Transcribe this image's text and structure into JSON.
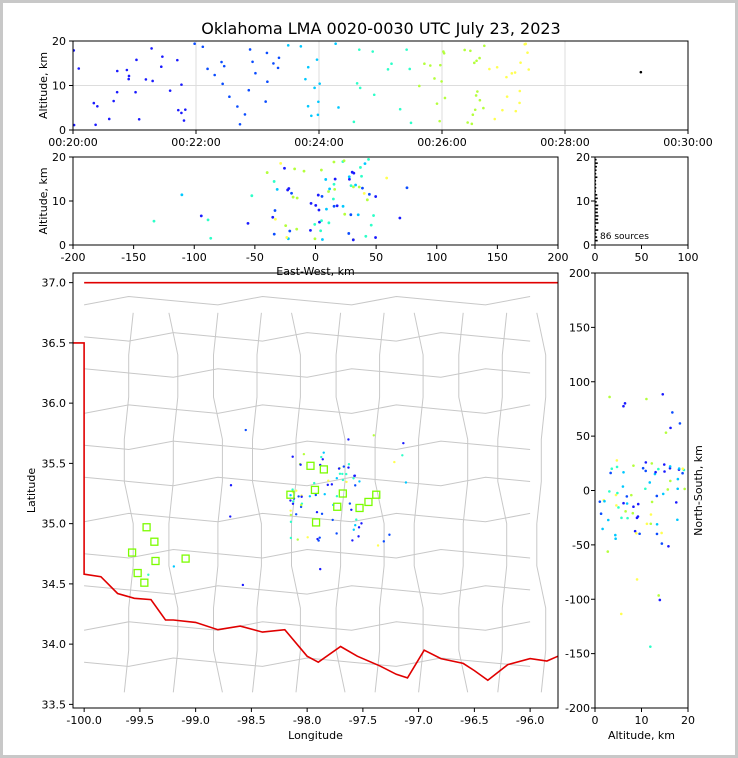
{
  "title": "Oklahoma LMA 0020-0030 UTC July 23, 2023",
  "chart_data": [
    {
      "panel": "altitude-time",
      "type": "scatter",
      "ylabel": "Altitude, km",
      "xlim": [
        "00:20:00",
        "00:30:00"
      ],
      "ylim": [
        0,
        20
      ],
      "xticks": [
        "00:20:00",
        "00:22:00",
        "00:24:00",
        "00:26:00",
        "00:28:00",
        "00:30:00"
      ],
      "yticks": [
        0,
        10,
        20
      ],
      "grid": true
    },
    {
      "panel": "east-west-altitude",
      "type": "scatter",
      "xlabel": "East-West, km",
      "ylabel": "Altitude, km",
      "xlim": [
        -200,
        200
      ],
      "ylim": [
        0,
        20
      ],
      "xticks": [
        -200,
        -150,
        -100,
        -50,
        0,
        50,
        100,
        150,
        200
      ],
      "yticks": [
        0,
        10,
        20
      ]
    },
    {
      "panel": "altitude-histogram",
      "type": "bar",
      "xlim": [
        0,
        100
      ],
      "ylim": [
        0,
        20
      ],
      "xticks": [
        0,
        50,
        100
      ],
      "yticks": [
        0,
        10,
        20
      ],
      "annotation": "86 sources"
    },
    {
      "panel": "plan-view-map",
      "type": "scatter",
      "xlabel": "Longitude",
      "ylabel": "Latitude",
      "xlim": [
        -100.1,
        -95.75
      ],
      "ylim": [
        33.47,
        37.08
      ],
      "xticks": [
        "-100.0",
        "-99.5",
        "-99.0",
        "-98.5",
        "-98.0",
        "-97.5",
        "-97.0",
        "-96.5",
        "-96.0"
      ],
      "yticks": [
        "33.5",
        "34.0",
        "34.5",
        "35.0",
        "35.5",
        "36.0",
        "36.5",
        "37.0"
      ],
      "station_color": "#7cfc00",
      "border_color": "#e00000",
      "county_color": "#c8c8c8",
      "stations": [
        {
          "lon": -97.85,
          "lat": 35.45
        },
        {
          "lon": -97.97,
          "lat": 35.48
        },
        {
          "lon": -98.15,
          "lat": 35.24
        },
        {
          "lon": -97.93,
          "lat": 35.28
        },
        {
          "lon": -97.68,
          "lat": 35.25
        },
        {
          "lon": -97.38,
          "lat": 35.24
        },
        {
          "lon": -97.45,
          "lat": 35.18
        },
        {
          "lon": -97.53,
          "lat": 35.13
        },
        {
          "lon": -97.73,
          "lat": 35.14
        },
        {
          "lon": -97.92,
          "lat": 35.01
        },
        {
          "lon": -99.44,
          "lat": 34.97
        },
        {
          "lon": -99.37,
          "lat": 34.85
        },
        {
          "lon": -99.57,
          "lat": 34.76
        },
        {
          "lon": -99.36,
          "lat": 34.69
        },
        {
          "lon": -99.09,
          "lat": 34.71
        },
        {
          "lon": -99.52,
          "lat": 34.59
        },
        {
          "lon": -99.46,
          "lat": 34.51
        }
      ]
    },
    {
      "panel": "north-south-altitude",
      "type": "scatter",
      "xlabel": "Altitude, km",
      "ylabel": "North-South, km",
      "xlim": [
        0,
        20
      ],
      "ylim": [
        -200,
        200
      ],
      "xticks": [
        0,
        10,
        20
      ],
      "yticks": [
        -200,
        -150,
        -100,
        -50,
        0,
        50,
        100,
        150,
        200
      ]
    }
  ]
}
